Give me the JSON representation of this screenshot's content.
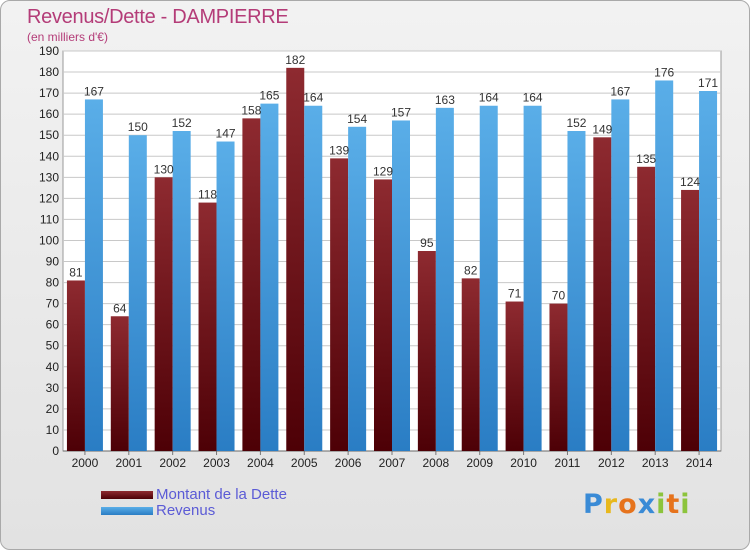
{
  "header": {
    "title": "Revenus/Dette - DAMPIERRE",
    "subtitle": "(en milliers d'€)"
  },
  "legend": {
    "items": [
      {
        "label": "Montant de la Dette",
        "color": "#7a1a1e"
      },
      {
        "label": "Revenus",
        "color": "#4aa3e6"
      }
    ]
  },
  "logo": {
    "letters": [
      {
        "ch": "P",
        "color": "#3a8bd6"
      },
      {
        "ch": "r",
        "color": "#e8b81c"
      },
      {
        "ch": "o",
        "color": "#e6731c"
      },
      {
        "ch": "x",
        "color": "#3a8bd6"
      },
      {
        "ch": "i",
        "color": "#8cc43c"
      },
      {
        "ch": "t",
        "color": "#e6731c"
      },
      {
        "ch": "i",
        "color": "#8cc43c"
      }
    ]
  },
  "chart_data": {
    "type": "bar",
    "title": "Revenus/Dette - DAMPIERRE",
    "subtitle": "(en milliers d'€)",
    "categories": [
      "2000",
      "2001",
      "2002",
      "2003",
      "2004",
      "2005",
      "2006",
      "2007",
      "2008",
      "2009",
      "2010",
      "2011",
      "2012",
      "2013",
      "2014"
    ],
    "series": [
      {
        "name": "Montant de la Dette",
        "color": "#7a1a1e",
        "values": [
          81,
          64,
          130,
          118,
          158,
          182,
          139,
          129,
          95,
          82,
          71,
          70,
          149,
          135,
          124
        ]
      },
      {
        "name": "Revenus",
        "color": "#4aa3e6",
        "values": [
          167,
          150,
          152,
          147,
          165,
          164,
          154,
          157,
          163,
          164,
          164,
          152,
          167,
          176,
          171
        ]
      }
    ],
    "ylim": [
      0,
      190
    ],
    "ytick_step": 10,
    "grid": true,
    "legend_position": "bottom-left"
  }
}
